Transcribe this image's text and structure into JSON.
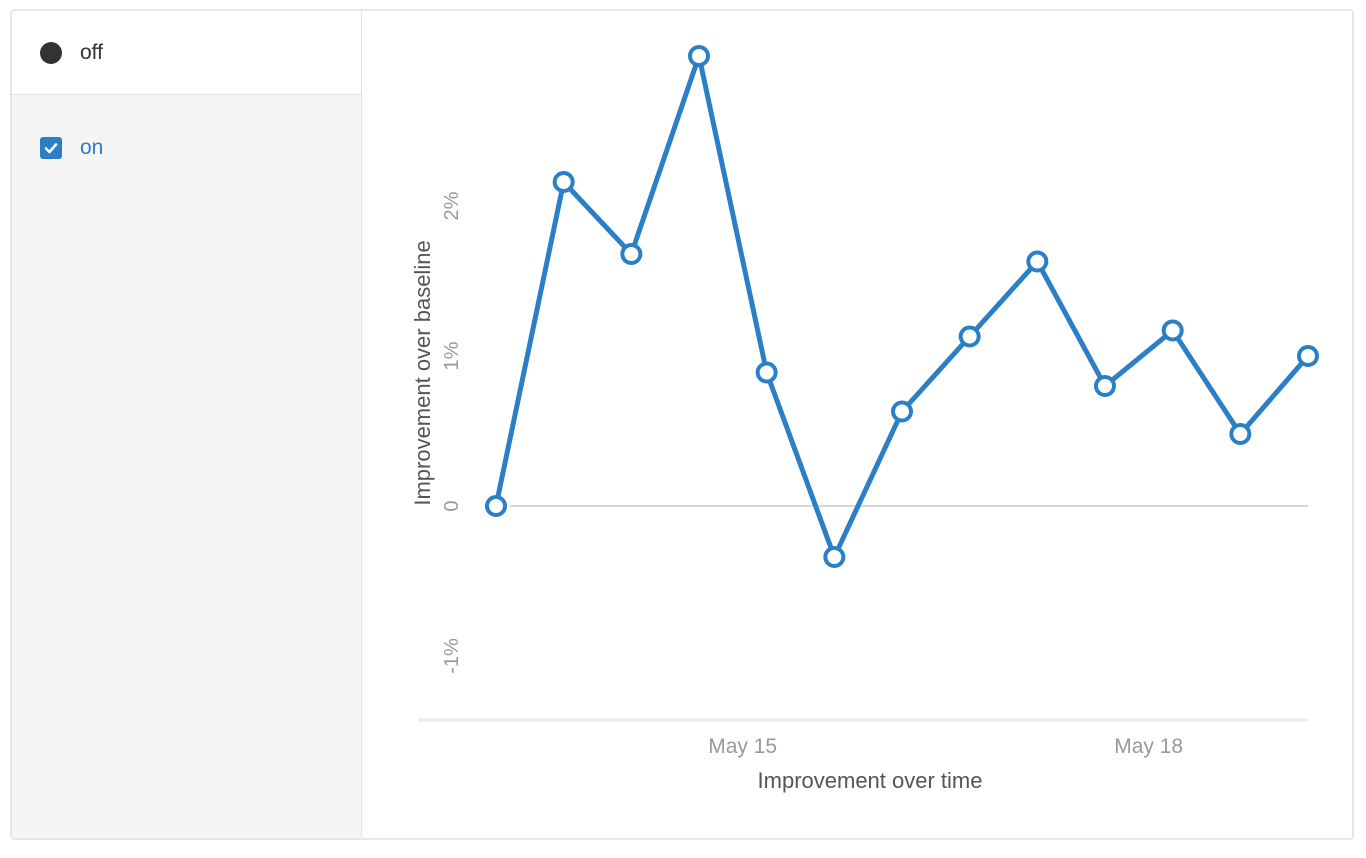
{
  "sidebar": {
    "items": [
      {
        "label": "off",
        "state": "off",
        "icon": "radio-dot-icon"
      },
      {
        "label": "on",
        "state": "on",
        "icon": "checkbox-checked-icon"
      }
    ]
  },
  "colors": {
    "series": "#2a7fc6",
    "axis_text": "#999999",
    "label_text": "#555555",
    "zero_line": "#d6d6d6"
  },
  "chart_data": {
    "type": "line",
    "xlabel": "Improvement over time",
    "ylabel": "Improvement over baseline",
    "x_ticks": [
      "May 15",
      "May 18"
    ],
    "y_ticks": [
      "-1%",
      "0",
      "1%",
      "2%"
    ],
    "ylim": [
      -1.6,
      3.0
    ],
    "grid": false,
    "series": [
      {
        "points": [
          {
            "x": "May 13 00:00",
            "y": 0.0
          },
          {
            "x": "May 13 12:00",
            "y": 2.16
          },
          {
            "x": "May 14 00:00",
            "y": 1.68
          },
          {
            "x": "May 14 12:00",
            "y": 3.0
          },
          {
            "x": "May 15 00:00",
            "y": 0.89
          },
          {
            "x": "May 15 12:00",
            "y": -0.34
          },
          {
            "x": "May 16 00:00",
            "y": 0.63
          },
          {
            "x": "May 16 12:00",
            "y": 1.13
          },
          {
            "x": "May 17 00:00",
            "y": 1.63
          },
          {
            "x": "May 17 12:00",
            "y": 0.8
          },
          {
            "x": "May 18 00:00",
            "y": 1.17
          },
          {
            "x": "May 18 12:00",
            "y": 0.48
          },
          {
            "x": "May 19 00:00",
            "y": 1.0
          }
        ]
      }
    ]
  }
}
